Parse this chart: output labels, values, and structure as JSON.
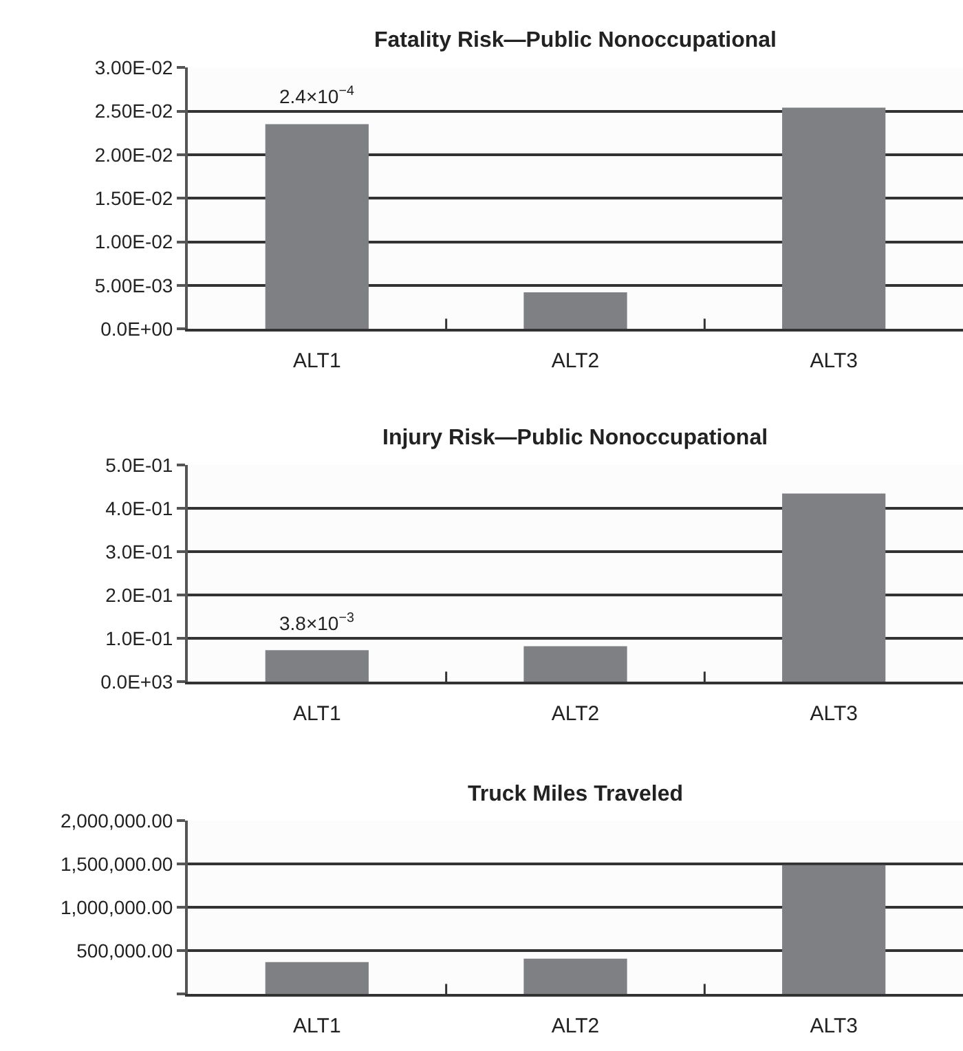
{
  "chart_data": [
    {
      "type": "bar",
      "title": "Fatality Risk—Public Nonoccupational",
      "categories": [
        "ALT1",
        "ALT2",
        "ALT3"
      ],
      "values": [
        0.0235,
        0.0042,
        0.0254
      ],
      "color": "#7f8084",
      "ylim": [
        0,
        0.03
      ],
      "yticks": [
        {
          "value": 0,
          "label": "0.0E+00"
        },
        {
          "value": 0.005,
          "label": "5.00E-03"
        },
        {
          "value": 0.01,
          "label": "1.00E-02"
        },
        {
          "value": 0.015,
          "label": "1.50E-02"
        },
        {
          "value": 0.02,
          "label": "2.00E-02"
        },
        {
          "value": 0.025,
          "label": "2.50E-02"
        },
        {
          "value": 0.03,
          "label": "3.00E-02"
        }
      ],
      "grid": "y",
      "annotations": [
        {
          "text": "2.4×10$^{−4}$",
          "x": "ALT1",
          "y": 0.0235
        }
      ]
    },
    {
      "type": "bar",
      "title": "Injury Risk—Public Nonoccupational",
      "categories": [
        "ALT1",
        "ALT2",
        "ALT3"
      ],
      "values": [
        0.073,
        0.082,
        0.434
      ],
      "color": "#7f8084",
      "ylim": [
        0,
        0.5
      ],
      "yticks": [
        {
          "value": 0,
          "label": "0.0E+03"
        },
        {
          "value": 0.1,
          "label": "1.0E-01"
        },
        {
          "value": 0.2,
          "label": "2.0E-01"
        },
        {
          "value": 0.3,
          "label": "3.0E-01"
        },
        {
          "value": 0.4,
          "label": "4.0E-01"
        },
        {
          "value": 0.5,
          "label": "5.0E-01"
        }
      ],
      "grid": "y",
      "annotations": [
        {
          "text": "3.8×10$^{−3}$",
          "x": "ALT1",
          "y": 0.073
        }
      ]
    },
    {
      "type": "bar",
      "title": "Truck Miles Traveled",
      "categories": [
        "ALT1",
        "ALT2",
        "ALT3"
      ],
      "values": [
        370000,
        410000,
        1490000
      ],
      "color": "#7f8084",
      "ylim": [
        0,
        2000000
      ],
      "yticks": [
        {
          "value": 0,
          "label": null
        },
        {
          "value": 500000,
          "label": "500,000.00"
        },
        {
          "value": 1000000,
          "label": "1,000,000.00"
        },
        {
          "value": 1500000,
          "label": "1,500,000.00"
        },
        {
          "value": 2000000,
          "label": "2,000,000.00"
        }
      ],
      "grid": "y"
    }
  ]
}
